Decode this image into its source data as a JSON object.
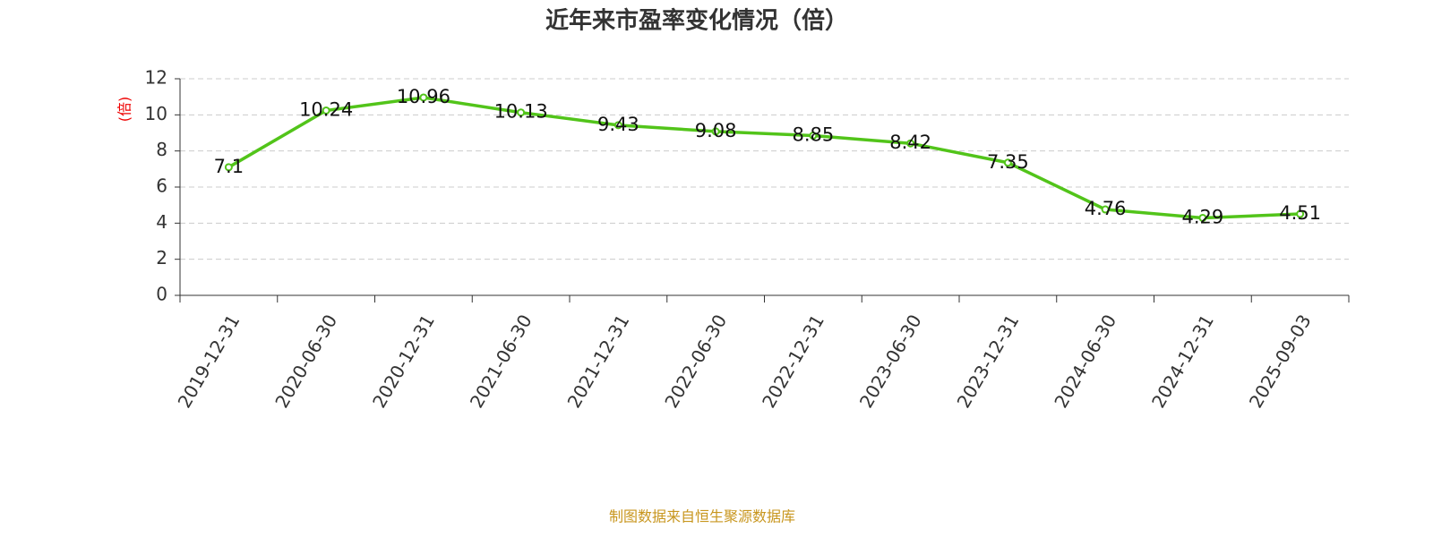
{
  "chart_data": {
    "type": "line",
    "title": "近年来市盈率变化情况（倍）",
    "y_label": "(倍)",
    "source": "制图数据来自恒生聚源数据库",
    "categories": [
      "2019-12-31",
      "2020-06-30",
      "2020-12-31",
      "2021-06-30",
      "2021-12-31",
      "2022-06-30",
      "2022-12-31",
      "2023-06-30",
      "2023-12-31",
      "2024-06-30",
      "2024-12-31",
      "2025-09-03"
    ],
    "series": [
      {
        "name": "市盈率",
        "color": "#52c41a",
        "values": [
          7.1,
          10.24,
          10.96,
          10.13,
          9.43,
          9.08,
          8.85,
          8.42,
          7.35,
          4.76,
          4.29,
          4.51
        ]
      }
    ],
    "ylim": [
      0,
      12
    ],
    "yticks": [
      0,
      2,
      4,
      6,
      8,
      10,
      12
    ],
    "grid": true
  }
}
